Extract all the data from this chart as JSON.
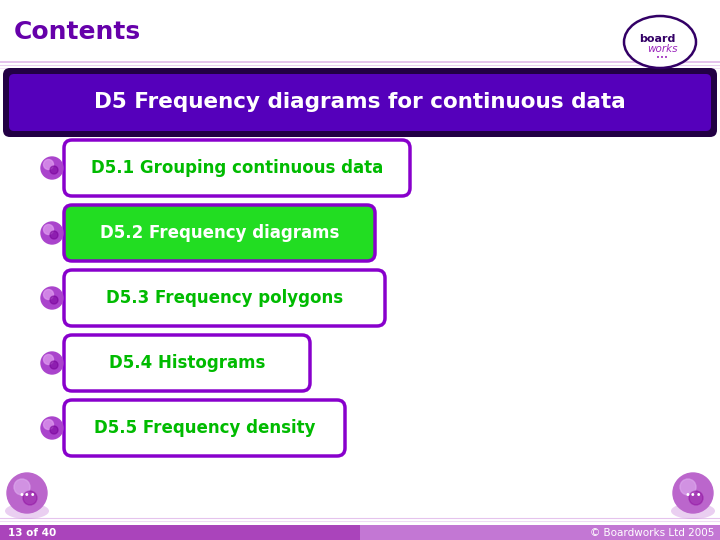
{
  "title": "Contents",
  "title_color": "#6600aa",
  "title_fontsize": 18,
  "main_heading": "D5 Frequency diagrams for continuous data",
  "main_heading_color": "#ffffff",
  "main_heading_bg": "#5500bb",
  "main_heading_border": "#220044",
  "items": [
    {
      "text": "D5.1 Grouping continuous data",
      "bg": "#ffffff",
      "border": "#8800cc",
      "text_color": "#00bb00"
    },
    {
      "text": "D5.2 Frequency diagrams",
      "bg": "#22dd22",
      "border": "#8800cc",
      "text_color": "#ffffff"
    },
    {
      "text": "D5.3 Frequency polygons",
      "bg": "#ffffff",
      "border": "#8800cc",
      "text_color": "#00bb00"
    },
    {
      "text": "D5.4 Histograms",
      "bg": "#ffffff",
      "border": "#8800cc",
      "text_color": "#00bb00"
    },
    {
      "text": "D5.5 Frequency density",
      "bg": "#ffffff",
      "border": "#8800cc",
      "text_color": "#00bb00"
    }
  ],
  "bullet_color": "#9933cc",
  "bg_color": "#ffffff",
  "footer_text_left": "13 of 40",
  "footer_text_right": "© Boardworks Ltd 2005",
  "footer_bg_left": "#aa44cc",
  "footer_bg_right": "#cc88dd",
  "footer_text_color": "#ffffff",
  "divider_line_color": "#cc88dd",
  "logo_border_color": "#330066"
}
